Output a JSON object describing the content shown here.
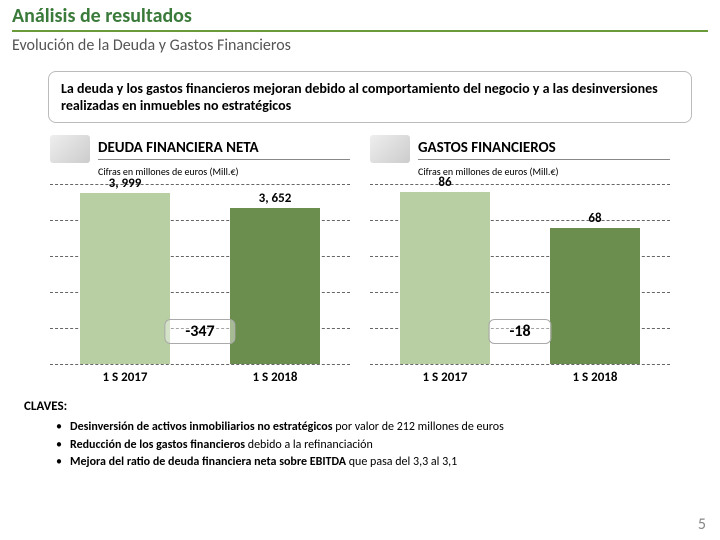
{
  "page": {
    "title": "Análisis de resultados",
    "subtitle": "Evolución de la Deuda y Gastos Financieros",
    "title_color": "#3a7a3a",
    "title_fontsize": 20,
    "subtitle_color": "#555555",
    "subtitle_fontsize": 16,
    "underline_color": "#6a9a3a",
    "page_number": "5"
  },
  "summary": {
    "text": "La deuda y los gastos financieros mejoran debido al comportamiento del negocio y a las desinversiones realizadas en inmuebles no estratégicos",
    "fontsize": 14
  },
  "charts": {
    "gridline_color": "#666666",
    "gridline_count": 6,
    "card1": {
      "title": "DEUDA FINANCIERA NETA",
      "title_fontsize": 15,
      "caption": "Cifras en millones de euros (Mill.€)",
      "caption_fontsize": 10,
      "type": "bar",
      "categories": [
        "1 S 2017",
        "1 S 2018"
      ],
      "labels": [
        "3, 999",
        "3, 652"
      ],
      "values": [
        3999,
        3652
      ],
      "ymax": 4200,
      "value_fontsize": 13,
      "axis_fontsize": 13,
      "bar_colors": [
        "#b7cfa3",
        "#6b8e4e"
      ],
      "diff_label": "-347",
      "diff_fontsize": 16
    },
    "card2": {
      "title": "GASTOS FINANCIEROS",
      "title_fontsize": 15,
      "caption": "Cifras en millones de euros (Mill.€)",
      "caption_fontsize": 10,
      "type": "bar",
      "categories": [
        "1 S 2017",
        "1 S 2018"
      ],
      "labels": [
        "86",
        "68"
      ],
      "values": [
        86,
        68
      ],
      "ymax": 90,
      "value_fontsize": 13,
      "axis_fontsize": 13,
      "bar_colors": [
        "#b7cfa3",
        "#6b8e4e"
      ],
      "diff_label": "-18",
      "diff_fontsize": 16
    }
  },
  "claves": {
    "title": "CLAVES:",
    "title_fontsize": 13,
    "item_fontsize": 12,
    "items": [
      {
        "bold": "Desinversión de activos inmobiliarios no estratégicos ",
        "rest": "por valor de 212 millones de euros"
      },
      {
        "bold": "Reducción de los gastos financieros ",
        "rest": "debido a la refinanciación"
      },
      {
        "bold": "Mejora del ratio de deuda financiera neta sobre EBITDA ",
        "rest": "que pasa del 3,3 al 3,1"
      }
    ]
  }
}
